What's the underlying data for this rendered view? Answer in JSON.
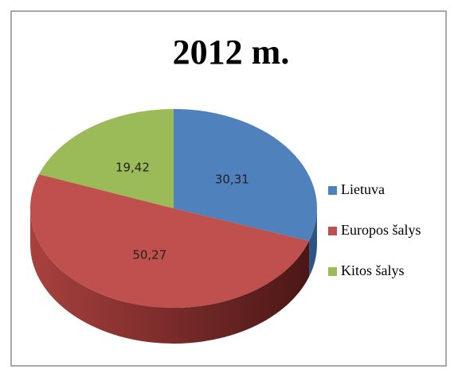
{
  "chart_data": {
    "type": "pie",
    "title": "2012 m.",
    "categories": [
      "Lietuva",
      "Europos šalys",
      "Kitos šalys"
    ],
    "values": [
      30.31,
      50.27,
      19.42
    ],
    "value_labels": [
      "30,31",
      "50,27",
      "19,42"
    ],
    "colors": [
      "#4f81bd",
      "#c0504d",
      "#9bbb59"
    ],
    "legend": "right"
  }
}
